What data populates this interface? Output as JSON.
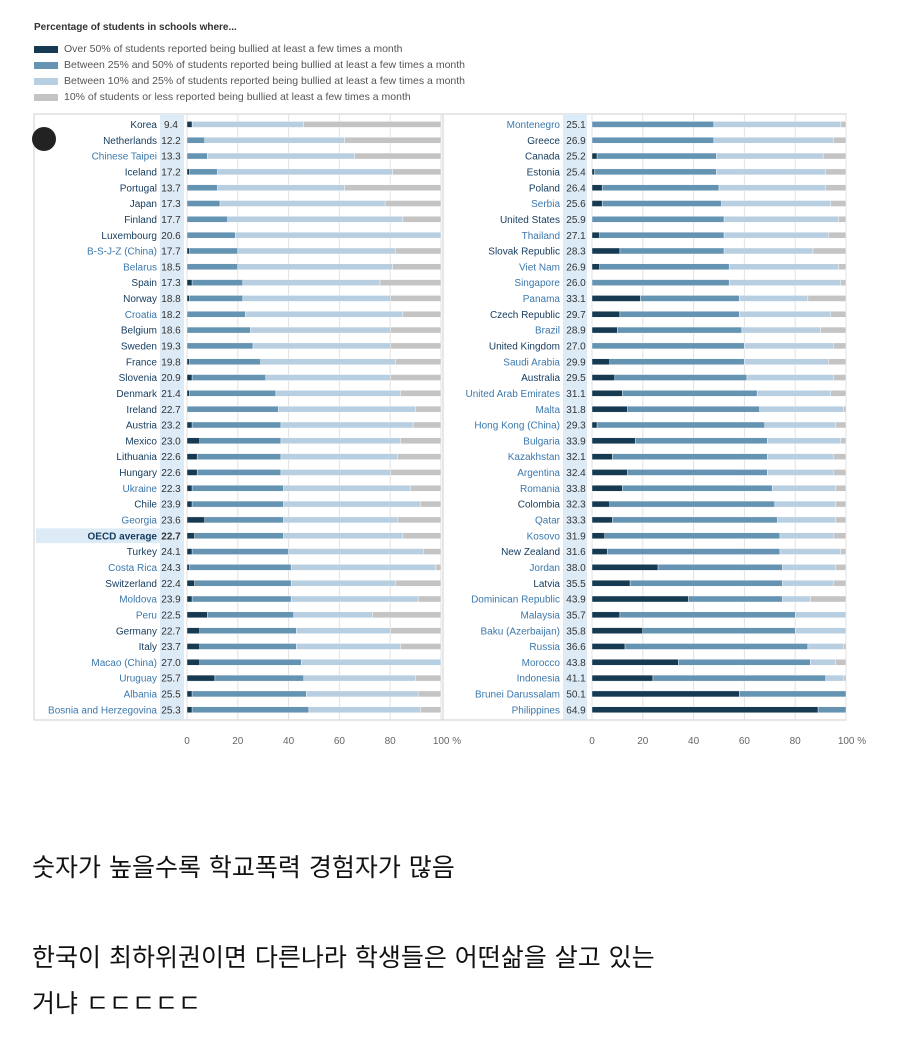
{
  "colors": {
    "over50": "#163a52",
    "b25_50": "#6593b2",
    "b10_25": "#b8cfe2",
    "le10": "#c4c4c4",
    "oecd_label": "#143b5e",
    "partner_label": "#3b78ad",
    "highlight_bg": "#ddebf6"
  },
  "chart_data": {
    "type": "bar",
    "stacked": true,
    "orientation": "horizontal",
    "title": "Percentage of students in schools where...",
    "legend": [
      {
        "key": "over50",
        "label": "Over 50% of students reported being bullied at least a few times a month"
      },
      {
        "key": "b25_50",
        "label": "Between 25% and 50% of students reported being bullied at least a few times a month"
      },
      {
        "key": "b10_25",
        "label": "Between 10% and 25% of students reported being bullied at least a few times a month"
      },
      {
        "key": "le10",
        "label": "10% of students or less reported being bullied at least a few times a month"
      }
    ],
    "xticks": [
      "0",
      "20",
      "40",
      "60",
      "80",
      "100 %"
    ],
    "xlim": [
      0,
      100
    ],
    "panels": [
      {
        "rows": [
          {
            "country": "Korea",
            "value": "9.4",
            "oecd": true,
            "segments": [
              2,
              0,
              44,
              54
            ]
          },
          {
            "country": "Netherlands",
            "value": "12.2",
            "oecd": true,
            "segments": [
              0,
              7,
              55,
              38
            ]
          },
          {
            "country": "Chinese Taipei",
            "value": "13.3",
            "oecd": false,
            "segments": [
              0,
              8,
              58,
              34
            ]
          },
          {
            "country": "Iceland",
            "value": "17.2",
            "oecd": true,
            "segments": [
              1,
              11,
              69,
              19
            ]
          },
          {
            "country": "Portugal",
            "value": "13.7",
            "oecd": true,
            "segments": [
              0,
              12,
              50,
              38
            ]
          },
          {
            "country": "Japan",
            "value": "17.3",
            "oecd": true,
            "segments": [
              0,
              13,
              65,
              22
            ]
          },
          {
            "country": "Finland",
            "value": "17.7",
            "oecd": true,
            "segments": [
              0,
              16,
              69,
              15
            ]
          },
          {
            "country": "Luxembourg",
            "value": "20.6",
            "oecd": true,
            "segments": [
              0,
              19,
              81,
              0
            ]
          },
          {
            "country": "B-S-J-Z (China)",
            "value": "17.7",
            "oecd": false,
            "segments": [
              1,
              19,
              62,
              18
            ]
          },
          {
            "country": "Belarus",
            "value": "18.5",
            "oecd": false,
            "segments": [
              0,
              20,
              61,
              19
            ]
          },
          {
            "country": "Spain",
            "value": "17.3",
            "oecd": true,
            "segments": [
              2,
              20,
              54,
              24
            ]
          },
          {
            "country": "Norway",
            "value": "18.8",
            "oecd": true,
            "segments": [
              1,
              21,
              58,
              20
            ]
          },
          {
            "country": "Croatia",
            "value": "18.2",
            "oecd": false,
            "segments": [
              0,
              23,
              62,
              15
            ]
          },
          {
            "country": "Belgium",
            "value": "18.6",
            "oecd": true,
            "segments": [
              0,
              25,
              55,
              20
            ]
          },
          {
            "country": "Sweden",
            "value": "19.3",
            "oecd": true,
            "segments": [
              0,
              26,
              54,
              20
            ]
          },
          {
            "country": "France",
            "value": "19.8",
            "oecd": true,
            "segments": [
              1,
              28,
              53,
              18
            ]
          },
          {
            "country": "Slovenia",
            "value": "20.9",
            "oecd": true,
            "segments": [
              2,
              29,
              49,
              20
            ]
          },
          {
            "country": "Denmark",
            "value": "21.4",
            "oecd": true,
            "segments": [
              1,
              34,
              49,
              16
            ]
          },
          {
            "country": "Ireland",
            "value": "22.7",
            "oecd": true,
            "segments": [
              0,
              36,
              54,
              10
            ]
          },
          {
            "country": "Austria",
            "value": "23.2",
            "oecd": true,
            "segments": [
              2,
              35,
              52,
              11
            ]
          },
          {
            "country": "Mexico",
            "value": "23.0",
            "oecd": true,
            "segments": [
              5,
              32,
              47,
              16
            ]
          },
          {
            "country": "Lithuania",
            "value": "22.6",
            "oecd": true,
            "segments": [
              4,
              33,
              46,
              17
            ]
          },
          {
            "country": "Hungary",
            "value": "22.6",
            "oecd": true,
            "segments": [
              4,
              33,
              43,
              20
            ]
          },
          {
            "country": "Ukraine",
            "value": "22.3",
            "oecd": false,
            "segments": [
              2,
              36,
              50,
              12
            ]
          },
          {
            "country": "Chile",
            "value": "23.9",
            "oecd": true,
            "segments": [
              2,
              36,
              54,
              8
            ]
          },
          {
            "country": "Georgia",
            "value": "23.6",
            "oecd": false,
            "segments": [
              7,
              31,
              45,
              17
            ]
          },
          {
            "country": "OECD average",
            "value": "22.7",
            "oecd": true,
            "highlight": true,
            "segments": [
              3,
              35,
              47,
              15
            ]
          },
          {
            "country": "Turkey",
            "value": "24.1",
            "oecd": true,
            "segments": [
              2,
              38,
              53,
              7
            ]
          },
          {
            "country": "Costa Rica",
            "value": "24.3",
            "oecd": false,
            "segments": [
              1,
              40,
              57,
              2
            ]
          },
          {
            "country": "Switzerland",
            "value": "22.4",
            "oecd": true,
            "segments": [
              3,
              38,
              41,
              18
            ]
          },
          {
            "country": "Moldova",
            "value": "23.9",
            "oecd": false,
            "segments": [
              2,
              39,
              50,
              9
            ]
          },
          {
            "country": "Peru",
            "value": "22.5",
            "oecd": false,
            "segments": [
              8,
              34,
              31,
              27
            ]
          },
          {
            "country": "Germany",
            "value": "22.7",
            "oecd": true,
            "segments": [
              5,
              38,
              37,
              20
            ]
          },
          {
            "country": "Italy",
            "value": "23.7",
            "oecd": true,
            "segments": [
              5,
              38,
              41,
              16
            ]
          },
          {
            "country": "Macao (China)",
            "value": "27.0",
            "oecd": false,
            "segments": [
              5,
              40,
              55,
              0
            ]
          },
          {
            "country": "Uruguay",
            "value": "25.7",
            "oecd": false,
            "segments": [
              11,
              35,
              44,
              10
            ]
          },
          {
            "country": "Albania",
            "value": "25.5",
            "oecd": false,
            "segments": [
              2,
              45,
              44,
              9
            ]
          },
          {
            "country": "Bosnia and Herzegovina",
            "value": "25.3",
            "oecd": false,
            "segments": [
              2,
              46,
              44,
              8
            ]
          }
        ]
      },
      {
        "rows": [
          {
            "country": "Montenegro",
            "value": "25.1",
            "oecd": false,
            "segments": [
              0,
              48,
              50,
              2
            ]
          },
          {
            "country": "Greece",
            "value": "26.9",
            "oecd": true,
            "segments": [
              0,
              48,
              47,
              5
            ]
          },
          {
            "country": "Canada",
            "value": "25.2",
            "oecd": true,
            "segments": [
              2,
              47,
              42,
              9
            ]
          },
          {
            "country": "Estonia",
            "value": "25.4",
            "oecd": true,
            "segments": [
              1,
              48,
              43,
              8
            ]
          },
          {
            "country": "Poland",
            "value": "26.4",
            "oecd": true,
            "segments": [
              4,
              46,
              42,
              8
            ]
          },
          {
            "country": "Serbia",
            "value": "25.6",
            "oecd": false,
            "segments": [
              4,
              47,
              43,
              6
            ]
          },
          {
            "country": "United States",
            "value": "25.9",
            "oecd": true,
            "segments": [
              0,
              52,
              45,
              3
            ]
          },
          {
            "country": "Thailand",
            "value": "27.1",
            "oecd": false,
            "segments": [
              3,
              49,
              41,
              7
            ]
          },
          {
            "country": "Slovak Republic",
            "value": "28.3",
            "oecd": true,
            "segments": [
              11,
              41,
              35,
              13
            ]
          },
          {
            "country": "Viet Nam",
            "value": "26.9",
            "oecd": false,
            "segments": [
              3,
              51,
              43,
              3
            ]
          },
          {
            "country": "Singapore",
            "value": "26.0",
            "oecd": false,
            "segments": [
              0,
              54,
              44,
              2
            ]
          },
          {
            "country": "Panama",
            "value": "33.1",
            "oecd": false,
            "segments": [
              19,
              39,
              27,
              15
            ]
          },
          {
            "country": "Czech Republic",
            "value": "29.7",
            "oecd": true,
            "segments": [
              11,
              47,
              36,
              6
            ]
          },
          {
            "country": "Brazil",
            "value": "28.9",
            "oecd": false,
            "segments": [
              10,
              49,
              31,
              10
            ]
          },
          {
            "country": "United Kingdom",
            "value": "27.0",
            "oecd": true,
            "segments": [
              0,
              60,
              35,
              5
            ]
          },
          {
            "country": "Saudi Arabia",
            "value": "29.9",
            "oecd": false,
            "segments": [
              7,
              53,
              33,
              7
            ]
          },
          {
            "country": "Australia",
            "value": "29.5",
            "oecd": true,
            "segments": [
              9,
              52,
              34,
              5
            ]
          },
          {
            "country": "United Arab Emirates",
            "value": "31.1",
            "oecd": false,
            "segments": [
              12,
              53,
              29,
              6
            ]
          },
          {
            "country": "Malta",
            "value": "31.8",
            "oecd": false,
            "segments": [
              14,
              52,
              33,
              1
            ]
          },
          {
            "country": "Hong Kong (China)",
            "value": "29.3",
            "oecd": false,
            "segments": [
              2,
              66,
              28,
              4
            ]
          },
          {
            "country": "Bulgaria",
            "value": "33.9",
            "oecd": false,
            "segments": [
              17,
              52,
              29,
              2
            ]
          },
          {
            "country": "Kazakhstan",
            "value": "32.1",
            "oecd": false,
            "segments": [
              8,
              61,
              26,
              5
            ]
          },
          {
            "country": "Argentina",
            "value": "32.4",
            "oecd": false,
            "segments": [
              14,
              55,
              26,
              5
            ]
          },
          {
            "country": "Romania",
            "value": "33.8",
            "oecd": false,
            "segments": [
              12,
              59,
              25,
              4
            ]
          },
          {
            "country": "Colombia",
            "value": "32.3",
            "oecd": true,
            "segments": [
              7,
              65,
              24,
              4
            ]
          },
          {
            "country": "Qatar",
            "value": "33.3",
            "oecd": false,
            "segments": [
              8,
              65,
              23,
              4
            ]
          },
          {
            "country": "Kosovo",
            "value": "31.9",
            "oecd": false,
            "segments": [
              5,
              69,
              21,
              5
            ]
          },
          {
            "country": "New Zealand",
            "value": "31.6",
            "oecd": true,
            "segments": [
              6,
              68,
              24,
              2
            ]
          },
          {
            "country": "Jordan",
            "value": "38.0",
            "oecd": false,
            "segments": [
              26,
              49,
              21,
              4
            ]
          },
          {
            "country": "Latvia",
            "value": "35.5",
            "oecd": true,
            "segments": [
              15,
              60,
              20,
              5
            ]
          },
          {
            "country": "Dominican Republic",
            "value": "43.9",
            "oecd": false,
            "segments": [
              38,
              37,
              11,
              14
            ]
          },
          {
            "country": "Malaysia",
            "value": "35.7",
            "oecd": false,
            "segments": [
              11,
              69,
              20,
              0
            ]
          },
          {
            "country": "Baku (Azerbaijan)",
            "value": "35.8",
            "oecd": false,
            "segments": [
              20,
              60,
              20,
              0
            ]
          },
          {
            "country": "Russia",
            "value": "36.6",
            "oecd": false,
            "segments": [
              13,
              72,
              14,
              1
            ]
          },
          {
            "country": "Morocco",
            "value": "43.8",
            "oecd": false,
            "segments": [
              34,
              52,
              10,
              4
            ]
          },
          {
            "country": "Indonesia",
            "value": "41.1",
            "oecd": false,
            "segments": [
              24,
              68,
              7,
              1
            ]
          },
          {
            "country": "Brunei Darussalam",
            "value": "50.1",
            "oecd": false,
            "segments": [
              58,
              42,
              0,
              0
            ]
          },
          {
            "country": "Philippines",
            "value": "64.9",
            "oecd": false,
            "segments": [
              89,
              11,
              0,
              0
            ]
          }
        ]
      }
    ]
  },
  "captions": {
    "line1": "숫자가 높을수록 학교폭력 경험자가 많음",
    "line2": "한국이 최하위권이면  다른나라 학생들은  어떤삶을 살고 있는",
    "line3": "거냐 ㄷㄷㄷㄷㄷ"
  }
}
